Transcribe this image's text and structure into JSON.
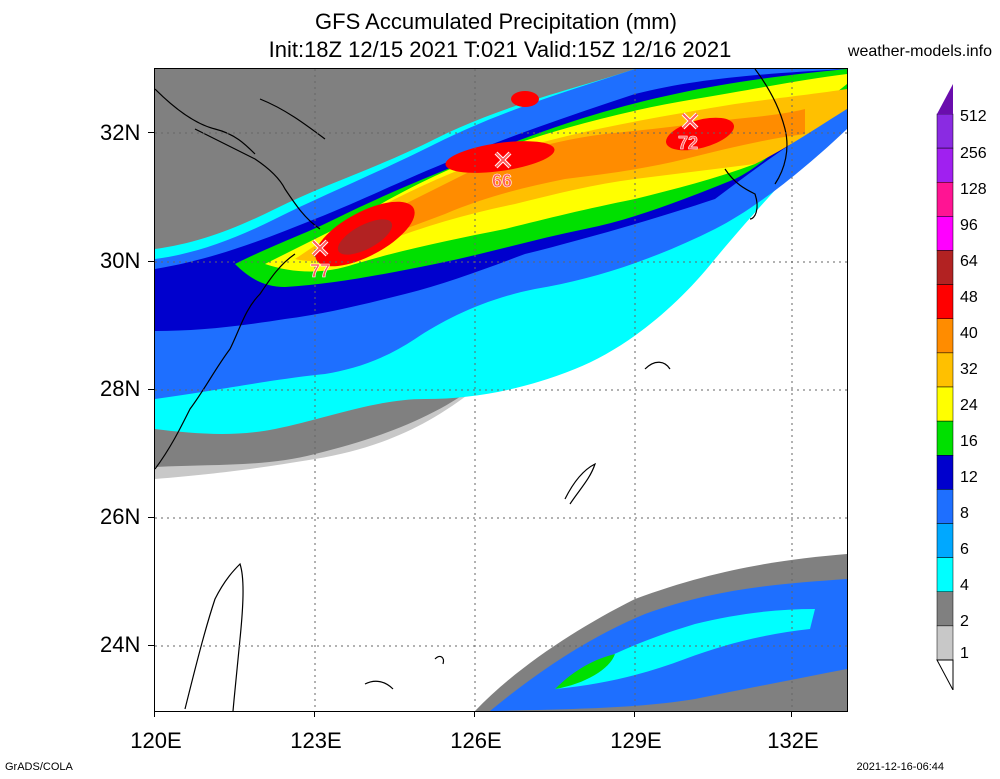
{
  "title_line1": "GFS Accumulated Precipitation (mm)",
  "title_line2": "Init:18Z 12/15 2021 T:021 Valid:15Z 12/16 2021",
  "site": "weather-models.info",
  "footer_left": "GrADS/COLA",
  "footer_right": "2021-12-16-06:44",
  "lat_labels": [
    "32N",
    "30N",
    "28N",
    "26N",
    "24N"
  ],
  "lon_labels": [
    "120E",
    "123E",
    "126E",
    "129E",
    "132E"
  ],
  "legend": {
    "labels": [
      "512",
      "256",
      "128",
      "96",
      "64",
      "48",
      "40",
      "32",
      "24",
      "16",
      "12",
      "8",
      "6",
      "4",
      "2",
      "1"
    ],
    "colors": [
      "#8a2be2",
      "#a020f0",
      "#ff1493",
      "#ff00ff",
      "#b22222",
      "#ff0000",
      "#ff8c00",
      "#ffc000",
      "#ffff00",
      "#00e000",
      "#0000cd",
      "#1e6fff",
      "#00a8ff",
      "#00ffff",
      "#808080",
      "#c8c8c8"
    ]
  },
  "markers": [
    {
      "value": "77"
    },
    {
      "value": "66"
    },
    {
      "value": "72"
    }
  ]
}
